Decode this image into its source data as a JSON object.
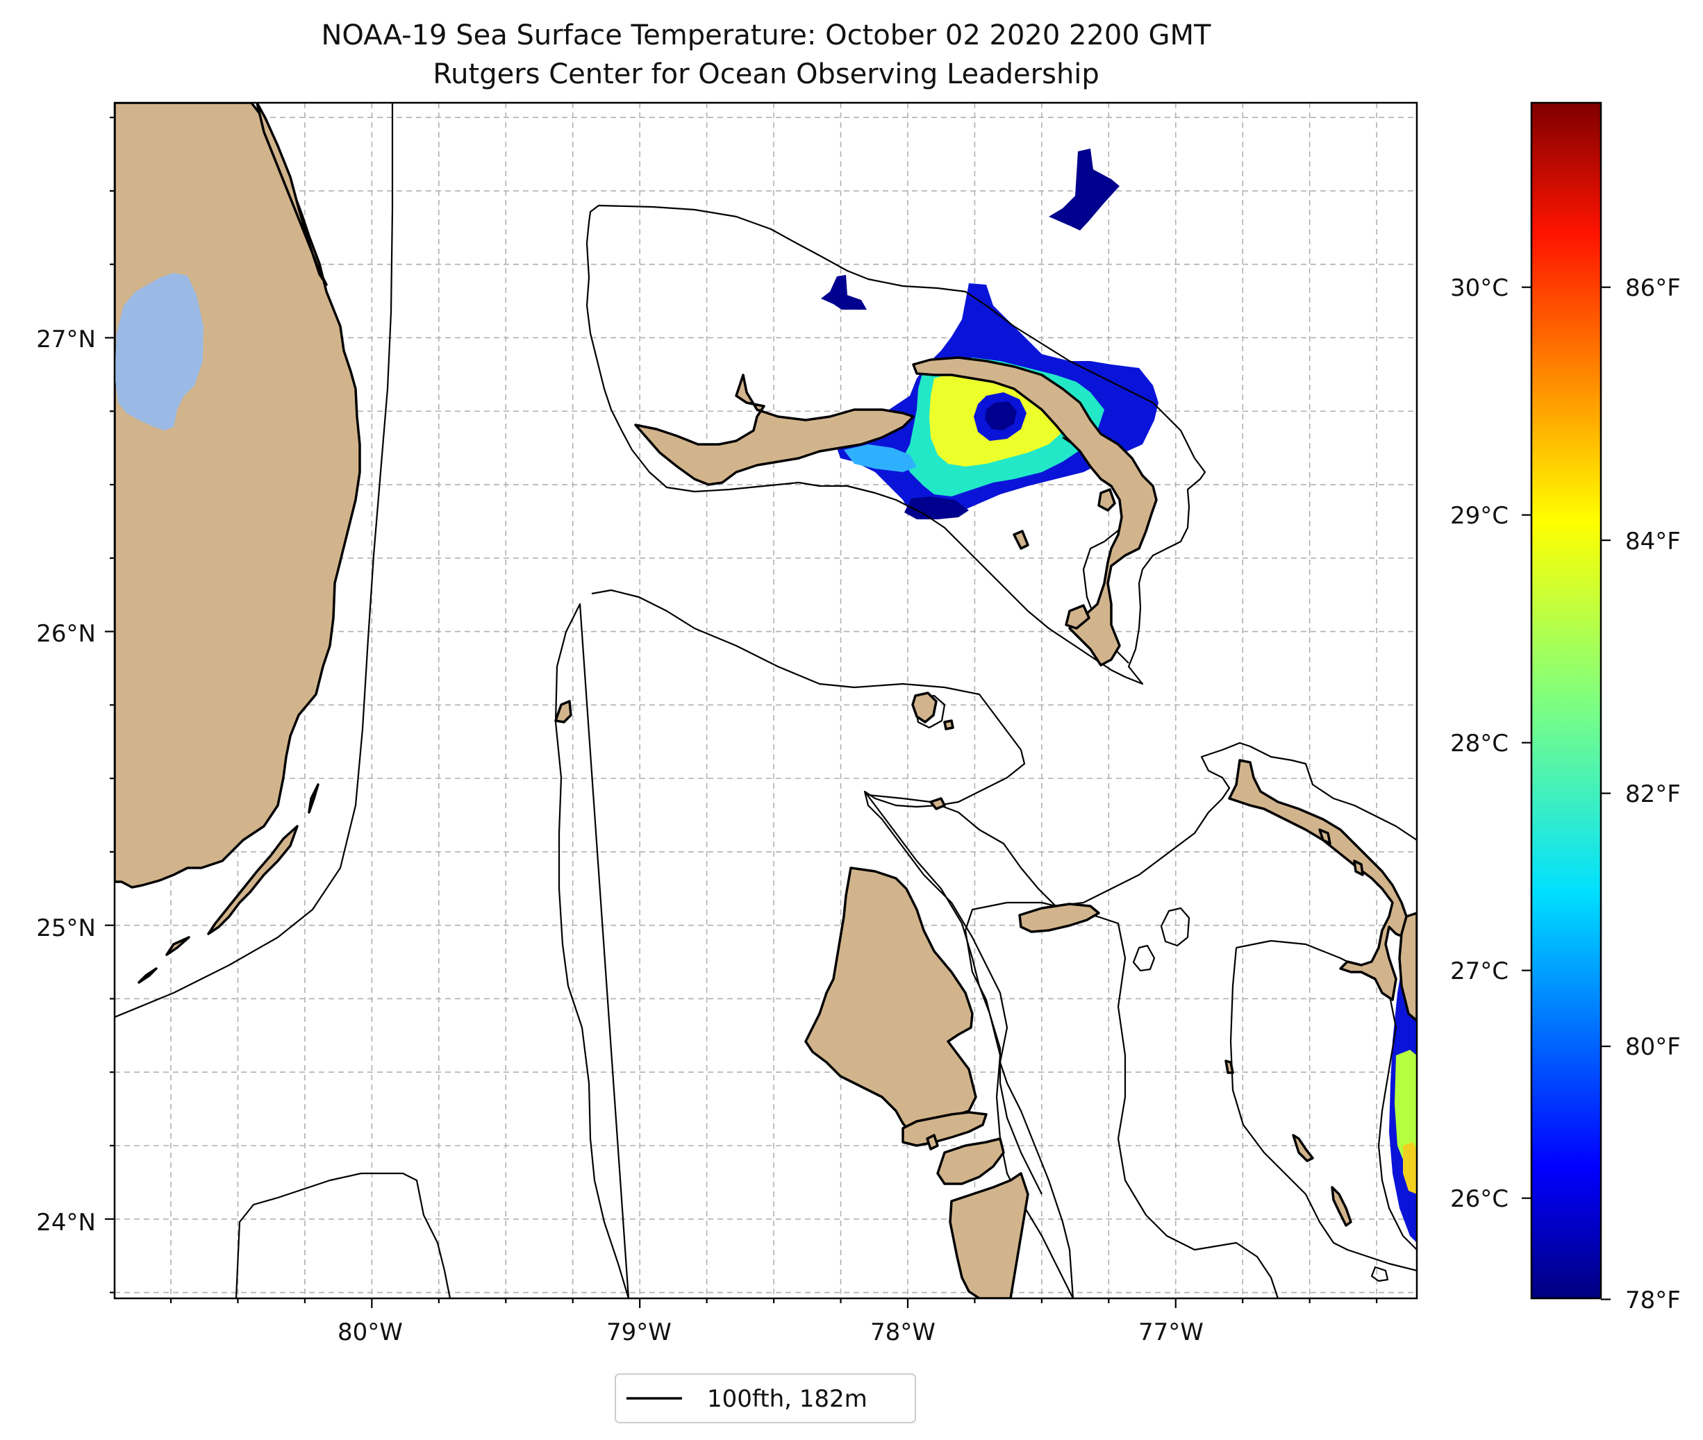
{
  "title": {
    "line1": "NOAA-19 Sea Surface Temperature: October 02 2020 2200 GMT",
    "line2": "Rutgers Center for Ocean Observing Leadership"
  },
  "map": {
    "projection": "lat-lon",
    "lon_range": [
      -80.96,
      -76.1
    ],
    "lat_range": [
      23.73,
      27.8
    ],
    "lon_ticks": [
      {
        "value": -80,
        "label": "80°W"
      },
      {
        "value": -79,
        "label": "79°W"
      },
      {
        "value": -78,
        "label": "78°W"
      },
      {
        "value": -77,
        "label": "77°W"
      }
    ],
    "lat_ticks": [
      {
        "value": 24,
        "label": "24°N"
      },
      {
        "value": 25,
        "label": "25°N"
      },
      {
        "value": 26,
        "label": "26°N"
      },
      {
        "value": 27,
        "label": "27°N"
      }
    ],
    "gridlines": true,
    "land_color": "#d2b48c",
    "lake_color": "#9ab9e4"
  },
  "colorbar": {
    "colormap": "jet",
    "celsius_range": [
      25.56,
      30.81
    ],
    "celsius_ticks": [
      {
        "value": 26,
        "label": "26°C"
      },
      {
        "value": 27,
        "label": "27°C"
      },
      {
        "value": 28,
        "label": "28°C"
      },
      {
        "value": 29,
        "label": "29°C"
      },
      {
        "value": 30,
        "label": "30°C"
      }
    ],
    "fahrenheit_ticks": [
      {
        "value": 78,
        "label": "78°F"
      },
      {
        "value": 80,
        "label": "80°F"
      },
      {
        "value": 82,
        "label": "82°F"
      },
      {
        "value": 84,
        "label": "84°F"
      },
      {
        "value": 86,
        "label": "86°F"
      }
    ]
  },
  "legend": {
    "entry_label": "100fth, 182m",
    "placement": "bottom-center"
  }
}
